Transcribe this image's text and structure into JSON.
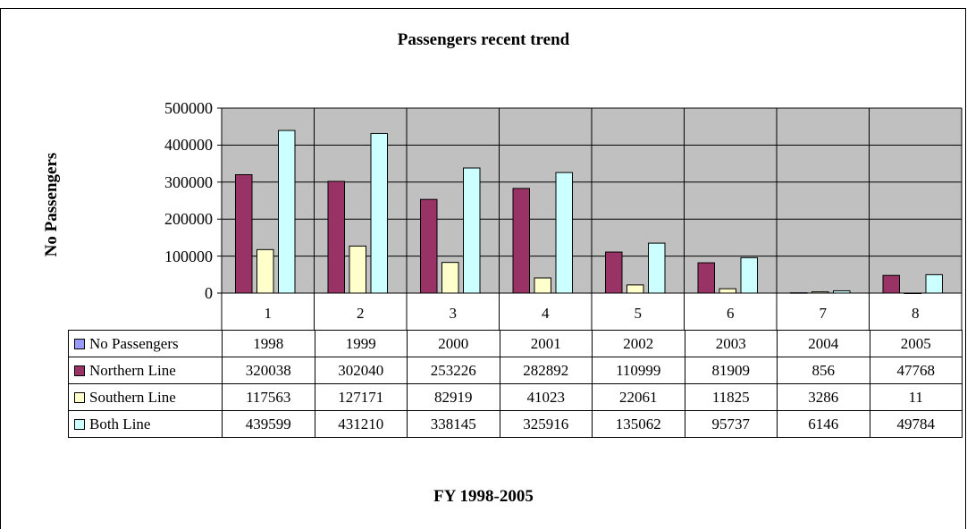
{
  "chart_data": {
    "type": "bar",
    "title": "Passengers recent trend",
    "ylabel": "No Passengers",
    "xlabel": "FY 1998-2005",
    "categories": [
      "1",
      "2",
      "3",
      "4",
      "5",
      "6",
      "7",
      "8"
    ],
    "ylim": [
      0,
      500000
    ],
    "yticks": [
      "500000",
      "400000",
      "300000",
      "200000",
      "100000",
      "0"
    ],
    "grid": true,
    "legend": "table",
    "table_rows": [
      {
        "label": "No Passengers",
        "color": "#9999FF",
        "values": [
          "1998",
          "1999",
          "2000",
          "2001",
          "2002",
          "2003",
          "2004",
          "2005"
        ]
      },
      {
        "label": "Northern Line",
        "color": "#993366",
        "values": [
          "320038",
          "302040",
          "253226",
          "282892",
          "110999",
          "81909",
          "856",
          "47768"
        ]
      },
      {
        "label": "Southern Line",
        "color": "#FFFFCC",
        "values": [
          "117563",
          "127171",
          "82919",
          "41023",
          "22061",
          "11825",
          "3286",
          "11"
        ]
      },
      {
        "label": "Both Line",
        "color": "#CCFFFF",
        "values": [
          "439599",
          "431210",
          "338145",
          "325916",
          "135062",
          "95737",
          "6146",
          "49784"
        ]
      }
    ],
    "series": [
      {
        "name": "Northern Line",
        "color": "#993366",
        "values": [
          320038,
          302040,
          253226,
          282892,
          110999,
          81909,
          856,
          47768
        ]
      },
      {
        "name": "Southern Line",
        "color": "#FFFFCC",
        "values": [
          117563,
          127171,
          82919,
          41023,
          22061,
          11825,
          3286,
          11
        ]
      },
      {
        "name": "Both Line",
        "color": "#CCFFFF",
        "values": [
          439599,
          431210,
          338145,
          325916,
          135062,
          95737,
          6146,
          49784
        ]
      }
    ],
    "plot_background": "#C0C0C0"
  }
}
